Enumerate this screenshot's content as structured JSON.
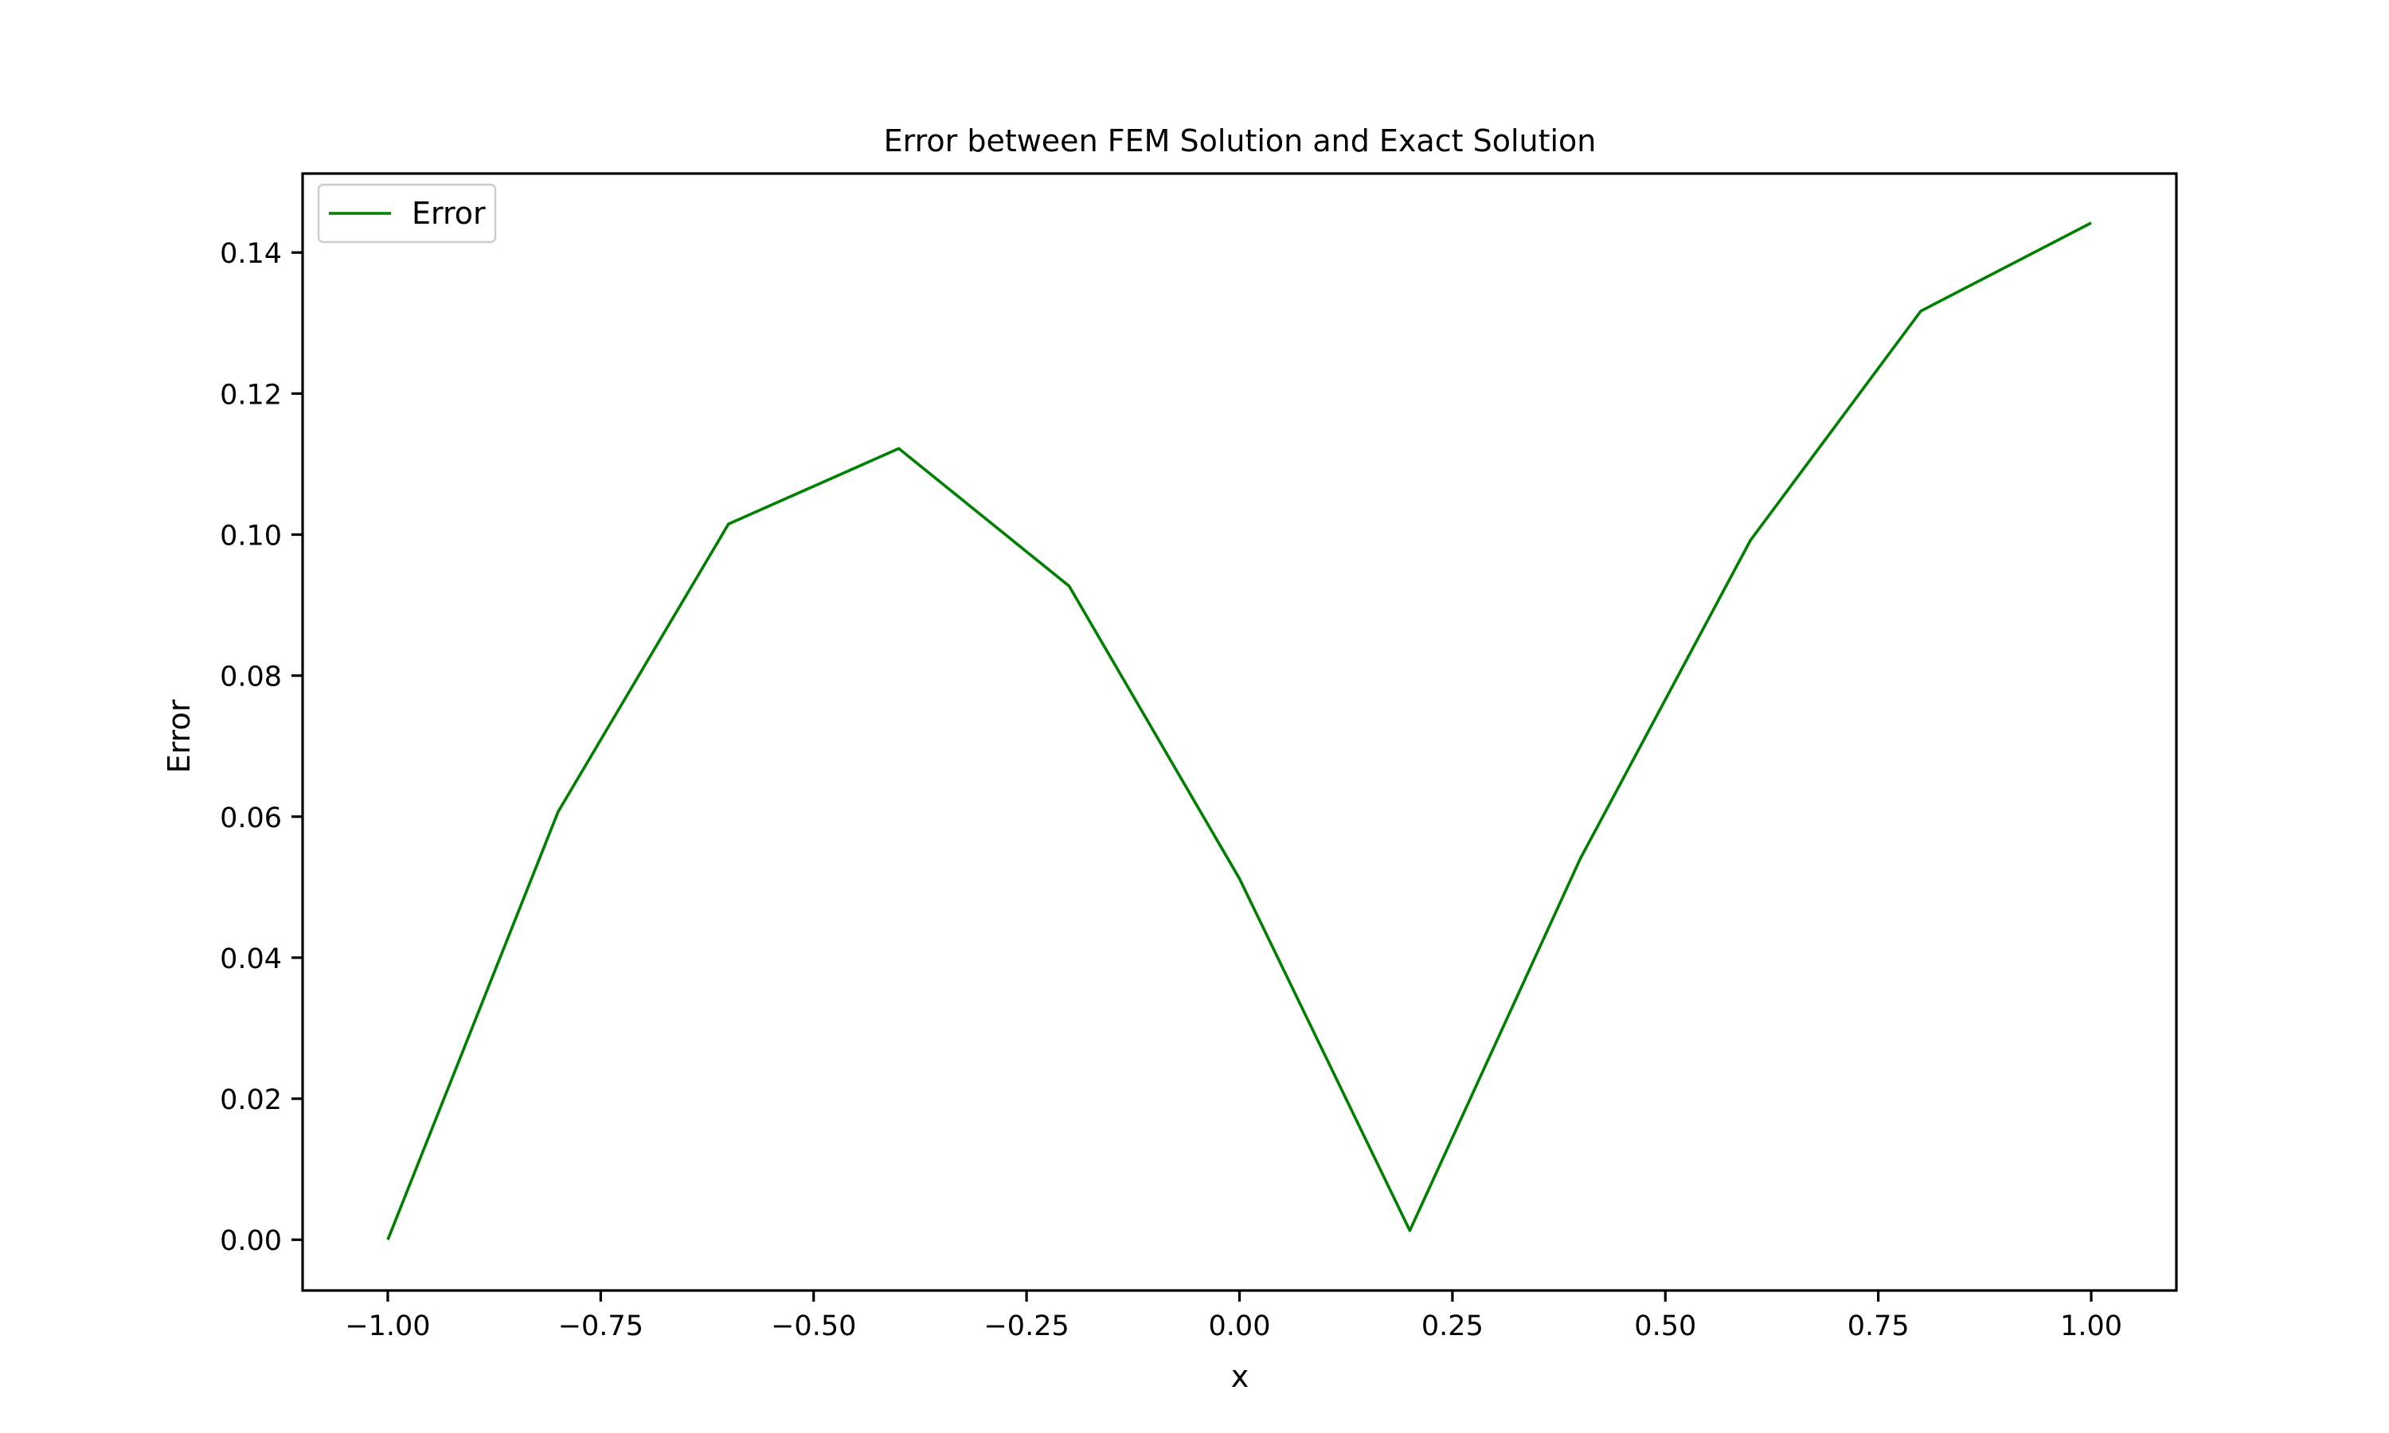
{
  "chart_data": {
    "type": "line",
    "title": "Error between FEM Solution and Exact Solution",
    "xlabel": "x",
    "ylabel": "Error",
    "xlim": [
      -1.1,
      1.1
    ],
    "ylim": [
      -0.0072,
      0.1512
    ],
    "grid": false,
    "legend_position": "upper left",
    "x_ticks": [
      {
        "value": -1.0,
        "label": "−1.00"
      },
      {
        "value": -0.75,
        "label": "−0.75"
      },
      {
        "value": -0.5,
        "label": "−0.50"
      },
      {
        "value": -0.25,
        "label": "−0.25"
      },
      {
        "value": 0.0,
        "label": "0.00"
      },
      {
        "value": 0.25,
        "label": "0.25"
      },
      {
        "value": 0.5,
        "label": "0.50"
      },
      {
        "value": 0.75,
        "label": "0.75"
      },
      {
        "value": 1.0,
        "label": "1.00"
      }
    ],
    "y_ticks": [
      {
        "value": 0.0,
        "label": "0.00"
      },
      {
        "value": 0.02,
        "label": "0.02"
      },
      {
        "value": 0.04,
        "label": "0.04"
      },
      {
        "value": 0.06,
        "label": "0.06"
      },
      {
        "value": 0.08,
        "label": "0.08"
      },
      {
        "value": 0.1,
        "label": "0.10"
      },
      {
        "value": 0.12,
        "label": "0.12"
      },
      {
        "value": 0.14,
        "label": "0.14"
      }
    ],
    "series": [
      {
        "name": "Error",
        "color": "#008000",
        "x": [
          -1.0,
          -0.8,
          -0.6,
          -0.4,
          -0.2,
          0.0,
          0.2,
          0.4,
          0.6,
          0.8,
          1.0
        ],
        "y": [
          0.0,
          0.0607,
          0.1015,
          0.1122,
          0.0927,
          0.0512,
          0.0013,
          0.054,
          0.0992,
          0.1317,
          0.1442
        ]
      }
    ]
  }
}
